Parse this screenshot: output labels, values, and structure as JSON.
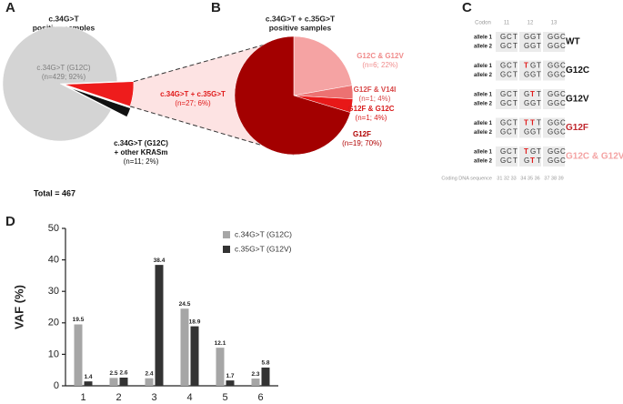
{
  "panel_labels": [
    "A",
    "B",
    "C",
    "D"
  ],
  "chart_data": [
    {
      "type": "pie",
      "title": [
        "c.34G>T",
        "positive samples"
      ],
      "labels": [
        [
          "c.34G>T (G12C)"
        ],
        [
          "c.34G>T + c.35G>T"
        ],
        [
          "c.34G>T (G12C)",
          "+ other KRASm"
        ]
      ],
      "values": [
        429,
        27,
        11
      ],
      "value_labels": [
        "(n=429; 92%)",
        "(n=27; 6%)",
        "(n=11; 2%)"
      ],
      "colors": [
        "#d4d4d4",
        "#ee1c1c",
        "#111111"
      ],
      "label_colors": [
        "#7f7f7f",
        "#e01b1b",
        "#111111"
      ],
      "total_label": "Total = 467"
    },
    {
      "type": "pie",
      "title": [
        "c.34G>T + c.35G>T",
        "positive samples"
      ],
      "labels": [
        [
          "G12C & G12V"
        ],
        [
          "G12F & V14I"
        ],
        [
          "G12F & G12C"
        ],
        [
          "G12F"
        ]
      ],
      "values": [
        6,
        1,
        1,
        19
      ],
      "value_labels": [
        "(n=6; 22%)",
        "(n=1; 4%)",
        "(n=1; 4%)",
        "(n=19; 70%)"
      ],
      "colors": [
        "#f5a3a3",
        "#ec7272",
        "#e81818",
        "#a30000"
      ],
      "label_colors": [
        "#f08c8c",
        "#d84848",
        "#d81a1a",
        "#b00000"
      ]
    },
    {
      "type": "bar",
      "categories": [
        "1",
        "2",
        "3",
        "4",
        "5",
        "6"
      ],
      "series": [
        {
          "name": "c.34G>T (G12C)",
          "color": "#a6a6a6",
          "values": [
            19.5,
            2.5,
            2.4,
            24.5,
            12.1,
            2.3
          ]
        },
        {
          "name": "c.35G>T (G12V)",
          "color": "#333333",
          "values": [
            1.4,
            2.6,
            38.4,
            18.9,
            1.7,
            5.8
          ]
        }
      ],
      "ylim": [
        0,
        50
      ],
      "yticks": [
        0,
        10,
        20,
        30,
        40,
        50
      ],
      "ylabel": "VAF (%)",
      "grid": false
    }
  ],
  "codon_table": {
    "header": [
      "Codon",
      "11",
      "12",
      "13"
    ],
    "rows": [
      {
        "label": "WT",
        "color": "#111111",
        "alleles": [
          {
            "name": "allele 1",
            "codons": [
              "GCT",
              "GGT",
              "GGC"
            ]
          },
          {
            "name": "allele 2",
            "codons": [
              "GCT",
              "GGT",
              "GGC"
            ]
          }
        ]
      },
      {
        "label": "G12C",
        "color": "#111111",
        "alleles": [
          {
            "name": "allele 1",
            "codons": [
              "GCT",
              "TGT",
              "GGC"
            ]
          },
          {
            "name": "allele 2",
            "codons": [
              "GCT",
              "GGT",
              "GGC"
            ]
          }
        ]
      },
      {
        "label": "G12V",
        "color": "#111111",
        "alleles": [
          {
            "name": "allele 1",
            "codons": [
              "GCT",
              "GTT",
              "GGC"
            ]
          },
          {
            "name": "allele 2",
            "codons": [
              "GCT",
              "GGT",
              "GGC"
            ]
          }
        ]
      },
      {
        "label": "G12F",
        "color": "#c0282e",
        "alleles": [
          {
            "name": "allele 1",
            "codons": [
              "GCT",
              "TTT",
              "GGC"
            ]
          },
          {
            "name": "allele 2",
            "codons": [
              "GCT",
              "GGT",
              "GGC"
            ]
          }
        ]
      },
      {
        "label": "G12C & G12V",
        "color": "#f4a3a3",
        "alleles": [
          {
            "name": "allele 1",
            "codons": [
              "GCT",
              "TGT",
              "GGC"
            ]
          },
          {
            "name": "allele 2",
            "codons": [
              "GCT",
              "GTT",
              "GGC"
            ]
          }
        ]
      }
    ],
    "footer": {
      "label": "Coding DNA sequence",
      "positions": [
        "31 32 33",
        "34 35 36",
        "37 38 39"
      ]
    }
  }
}
